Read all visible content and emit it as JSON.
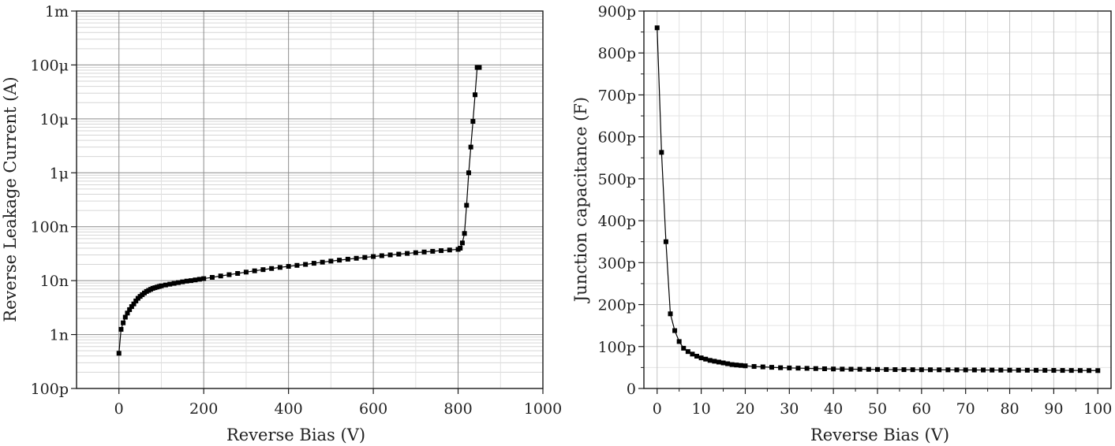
{
  "chart_data": [
    {
      "type": "scatter",
      "connected": true,
      "marker": "square",
      "color": "#000000",
      "xlabel": "Reverse Bias (V)",
      "ylabel": "Reverse Leakage Current (A)",
      "xlim": [
        -100,
        1000
      ],
      "ylim": [
        1e-10,
        0.001
      ],
      "yscale": "log",
      "grid": true,
      "xticks": [
        {
          "value": 0,
          "label": "0"
        },
        {
          "value": 200,
          "label": "200"
        },
        {
          "value": 400,
          "label": "400"
        },
        {
          "value": 600,
          "label": "600"
        },
        {
          "value": 800,
          "label": "800"
        },
        {
          "value": 1000,
          "label": "1000"
        }
      ],
      "yticks": [
        {
          "value": 1e-10,
          "label": "100p"
        },
        {
          "value": 1e-09,
          "label": "1n"
        },
        {
          "value": 1e-08,
          "label": "10n"
        },
        {
          "value": 1e-07,
          "label": "100n"
        },
        {
          "value": 1e-06,
          "label": "1μ"
        },
        {
          "value": 1e-05,
          "label": "10μ"
        },
        {
          "value": 0.0001,
          "label": "100μ"
        },
        {
          "value": 0.001,
          "label": "1m"
        }
      ],
      "series": [
        {
          "x": [
            0,
            5,
            10,
            15,
            20,
            25,
            30,
            35,
            40,
            45,
            50,
            55,
            60,
            65,
            70,
            75,
            80,
            85,
            90,
            95,
            100,
            110,
            120,
            130,
            140,
            150,
            160,
            170,
            180,
            190,
            200,
            220,
            240,
            260,
            280,
            300,
            320,
            340,
            360,
            380,
            400,
            420,
            440,
            460,
            480,
            500,
            520,
            540,
            560,
            580,
            600,
            620,
            640,
            660,
            680,
            700,
            720,
            740,
            760,
            780,
            800,
            805,
            810,
            815,
            820,
            825,
            830,
            835,
            840,
            845,
            850
          ],
          "y": [
            4.5e-10,
            1.25e-09,
            1.65e-09,
            2.1e-09,
            2.5e-09,
            2.9e-09,
            3.3e-09,
            3.7e-09,
            4.2e-09,
            4.7e-09,
            5.1e-09,
            5.5e-09,
            5.9e-09,
            6.3e-09,
            6.6e-09,
            6.9e-09,
            7.2e-09,
            7.4e-09,
            7.6e-09,
            7.8e-09,
            8e-09,
            8.3e-09,
            8.6e-09,
            8.9e-09,
            9.2e-09,
            9.5e-09,
            9.8e-09,
            1e-08,
            1.03e-08,
            1.06e-08,
            1.09e-08,
            1.15e-08,
            1.22e-08,
            1.29e-08,
            1.36e-08,
            1.44e-08,
            1.52e-08,
            1.6e-08,
            1.68e-08,
            1.76e-08,
            1.84e-08,
            1.92e-08,
            2e-08,
            2.1e-08,
            2.2e-08,
            2.3e-08,
            2.4e-08,
            2.5e-08,
            2.6e-08,
            2.7e-08,
            2.8e-08,
            2.9e-08,
            3e-08,
            3.1e-08,
            3.2e-08,
            3.3e-08,
            3.4e-08,
            3.5e-08,
            3.6e-08,
            3.7e-08,
            3.8e-08,
            4e-08,
            5e-08,
            7.5e-08,
            2.5e-07,
            1e-06,
            3e-06,
            9e-06,
            2.8e-05,
            9e-05,
            9e-05
          ]
        }
      ]
    },
    {
      "type": "scatter",
      "connected": true,
      "marker": "square",
      "color": "#000000",
      "xlabel": "Reverse Bias (V)",
      "ylabel": "Junction capacitance (F)",
      "xlim": [
        -3,
        103
      ],
      "ylim": [
        0,
        900
      ],
      "yunit_suffix": "p",
      "grid": true,
      "xticks": [
        {
          "value": 0,
          "label": "0"
        },
        {
          "value": 10,
          "label": "10"
        },
        {
          "value": 20,
          "label": "20"
        },
        {
          "value": 30,
          "label": "30"
        },
        {
          "value": 40,
          "label": "40"
        },
        {
          "value": 50,
          "label": "50"
        },
        {
          "value": 60,
          "label": "60"
        },
        {
          "value": 70,
          "label": "70"
        },
        {
          "value": 80,
          "label": "80"
        },
        {
          "value": 90,
          "label": "90"
        },
        {
          "value": 100,
          "label": "100"
        }
      ],
      "yticks": [
        {
          "value": 0,
          "label": "0"
        },
        {
          "value": 100,
          "label": "100p"
        },
        {
          "value": 200,
          "label": "200p"
        },
        {
          "value": 300,
          "label": "300p"
        },
        {
          "value": 400,
          "label": "400p"
        },
        {
          "value": 500,
          "label": "500p"
        },
        {
          "value": 600,
          "label": "600p"
        },
        {
          "value": 700,
          "label": "700p"
        },
        {
          "value": 800,
          "label": "800p"
        },
        {
          "value": 900,
          "label": "900p"
        }
      ],
      "series": [
        {
          "x": [
            0,
            1,
            2,
            3,
            4,
            5,
            6,
            7,
            8,
            9,
            10,
            11,
            12,
            13,
            14,
            15,
            16,
            17,
            18,
            19,
            20,
            22,
            24,
            26,
            28,
            30,
            32,
            34,
            36,
            38,
            40,
            42,
            44,
            46,
            48,
            50,
            52,
            54,
            56,
            58,
            60,
            62,
            64,
            66,
            68,
            70,
            72,
            74,
            76,
            78,
            80,
            82,
            84,
            86,
            88,
            90,
            92,
            94,
            96,
            98,
            100
          ],
          "y": [
            860,
            563,
            350,
            178,
            138,
            112,
            96,
            88,
            82,
            77,
            73,
            70,
            67,
            65,
            63,
            61,
            59,
            57,
            56,
            55,
            54,
            52.5,
            51.5,
            50.5,
            49.5,
            49,
            48.5,
            48,
            47.5,
            47,
            46.5,
            46.2,
            46,
            45.8,
            45.6,
            45.4,
            45.2,
            45,
            44.9,
            44.8,
            44.7,
            44.6,
            44.5,
            44.4,
            44.3,
            44.2,
            44.1,
            44,
            43.9,
            43.8,
            43.7,
            43.6,
            43.5,
            43.4,
            43.3,
            43.2,
            43.1,
            43,
            42.9,
            42.8,
            42.7
          ]
        }
      ]
    }
  ]
}
